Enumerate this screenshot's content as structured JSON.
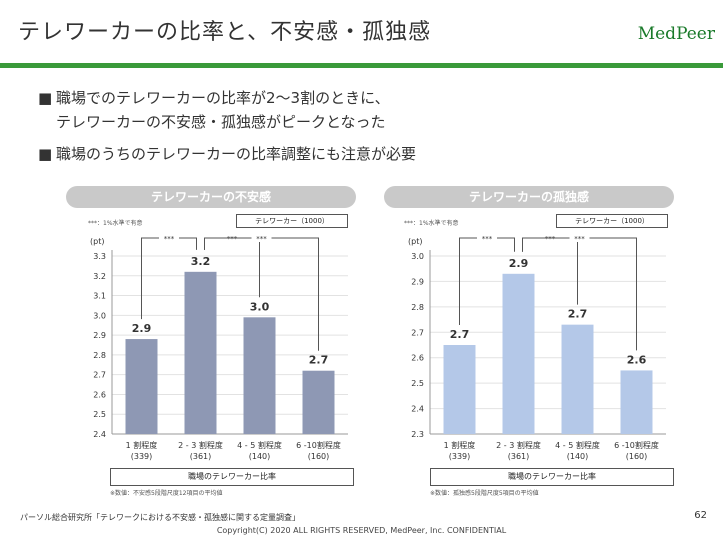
{
  "slide": {
    "title": "テレワーカーの比率と、不安感・孤独感",
    "logo": "MedPeer",
    "bullets": [
      {
        "marker": "■",
        "lines": [
          "職場でのテレワーカーの比率が2〜3割のときに、",
          "テレワーカーの不安感・孤独感がピークとなった"
        ]
      },
      {
        "marker": "■",
        "lines": [
          "職場のうちのテレワーカーの比率調整にも注意が必要"
        ]
      }
    ],
    "footer_source": "パーソル総合研究所「テレワークにおける不安感・孤独感に関する定量調査」",
    "copyright": "Copyright(C) 2020 ALL RIGHTS RESERVED, MedPeer, Inc. CONFIDENTIAL",
    "page_number": "62",
    "colors": {
      "green": "#3a9a3a",
      "bar_left": "#8e98b4",
      "bar_right": "#b4c8e8"
    }
  },
  "chart_data": [
    {
      "type": "bar",
      "title": "テレワーカーの不安感",
      "sig_note": "***：1%水準で有意",
      "legend": "テレワーカー（1000）",
      "ylabel": "(pt)",
      "ylim": [
        2.4,
        3.3
      ],
      "yticks": [
        "3.3",
        "3.2",
        "3.1",
        "3.0",
        "2.9",
        "2.8",
        "2.7",
        "2.6",
        "2.5",
        "2.4"
      ],
      "categories": [
        "1 割程度",
        "2 - 3 割程度",
        "4 - 5 割程度",
        "6 -10割程度"
      ],
      "counts": [
        "(339)",
        "(361)",
        "(140)",
        "(160)"
      ],
      "values": [
        2.88,
        3.22,
        2.99,
        2.72
      ],
      "value_labels": [
        "2.9",
        "3.2",
        "3.0",
        "2.7"
      ],
      "sig_marks": [
        "***",
        "***",
        "***"
      ],
      "xlabel": "職場のテレワーカー比率",
      "source_note": "※数値：不安感5段階尺度12項目の平均値"
    },
    {
      "type": "bar",
      "title": "テレワーカーの孤独感",
      "sig_note": "***：1%水準で有意",
      "legend": "テレワーカー（1000）",
      "ylabel": "(pt)",
      "ylim": [
        2.3,
        3.0
      ],
      "yticks": [
        "3.0",
        "2.9",
        "2.8",
        "2.7",
        "2.6",
        "2.5",
        "2.4",
        "2.3"
      ],
      "categories": [
        "1 割程度",
        "2 - 3 割程度",
        "4 - 5 割程度",
        "6 -10割程度"
      ],
      "counts": [
        "(339)",
        "(361)",
        "(140)",
        "(160)"
      ],
      "values": [
        2.65,
        2.93,
        2.73,
        2.55
      ],
      "value_labels": [
        "2.7",
        "2.9",
        "2.7",
        "2.6"
      ],
      "sig_marks": [
        "***",
        "***",
        "***"
      ],
      "xlabel": "職場のテレワーカー比率",
      "source_note": "※数値：孤独感5段階尺度5項目の平均値"
    }
  ]
}
